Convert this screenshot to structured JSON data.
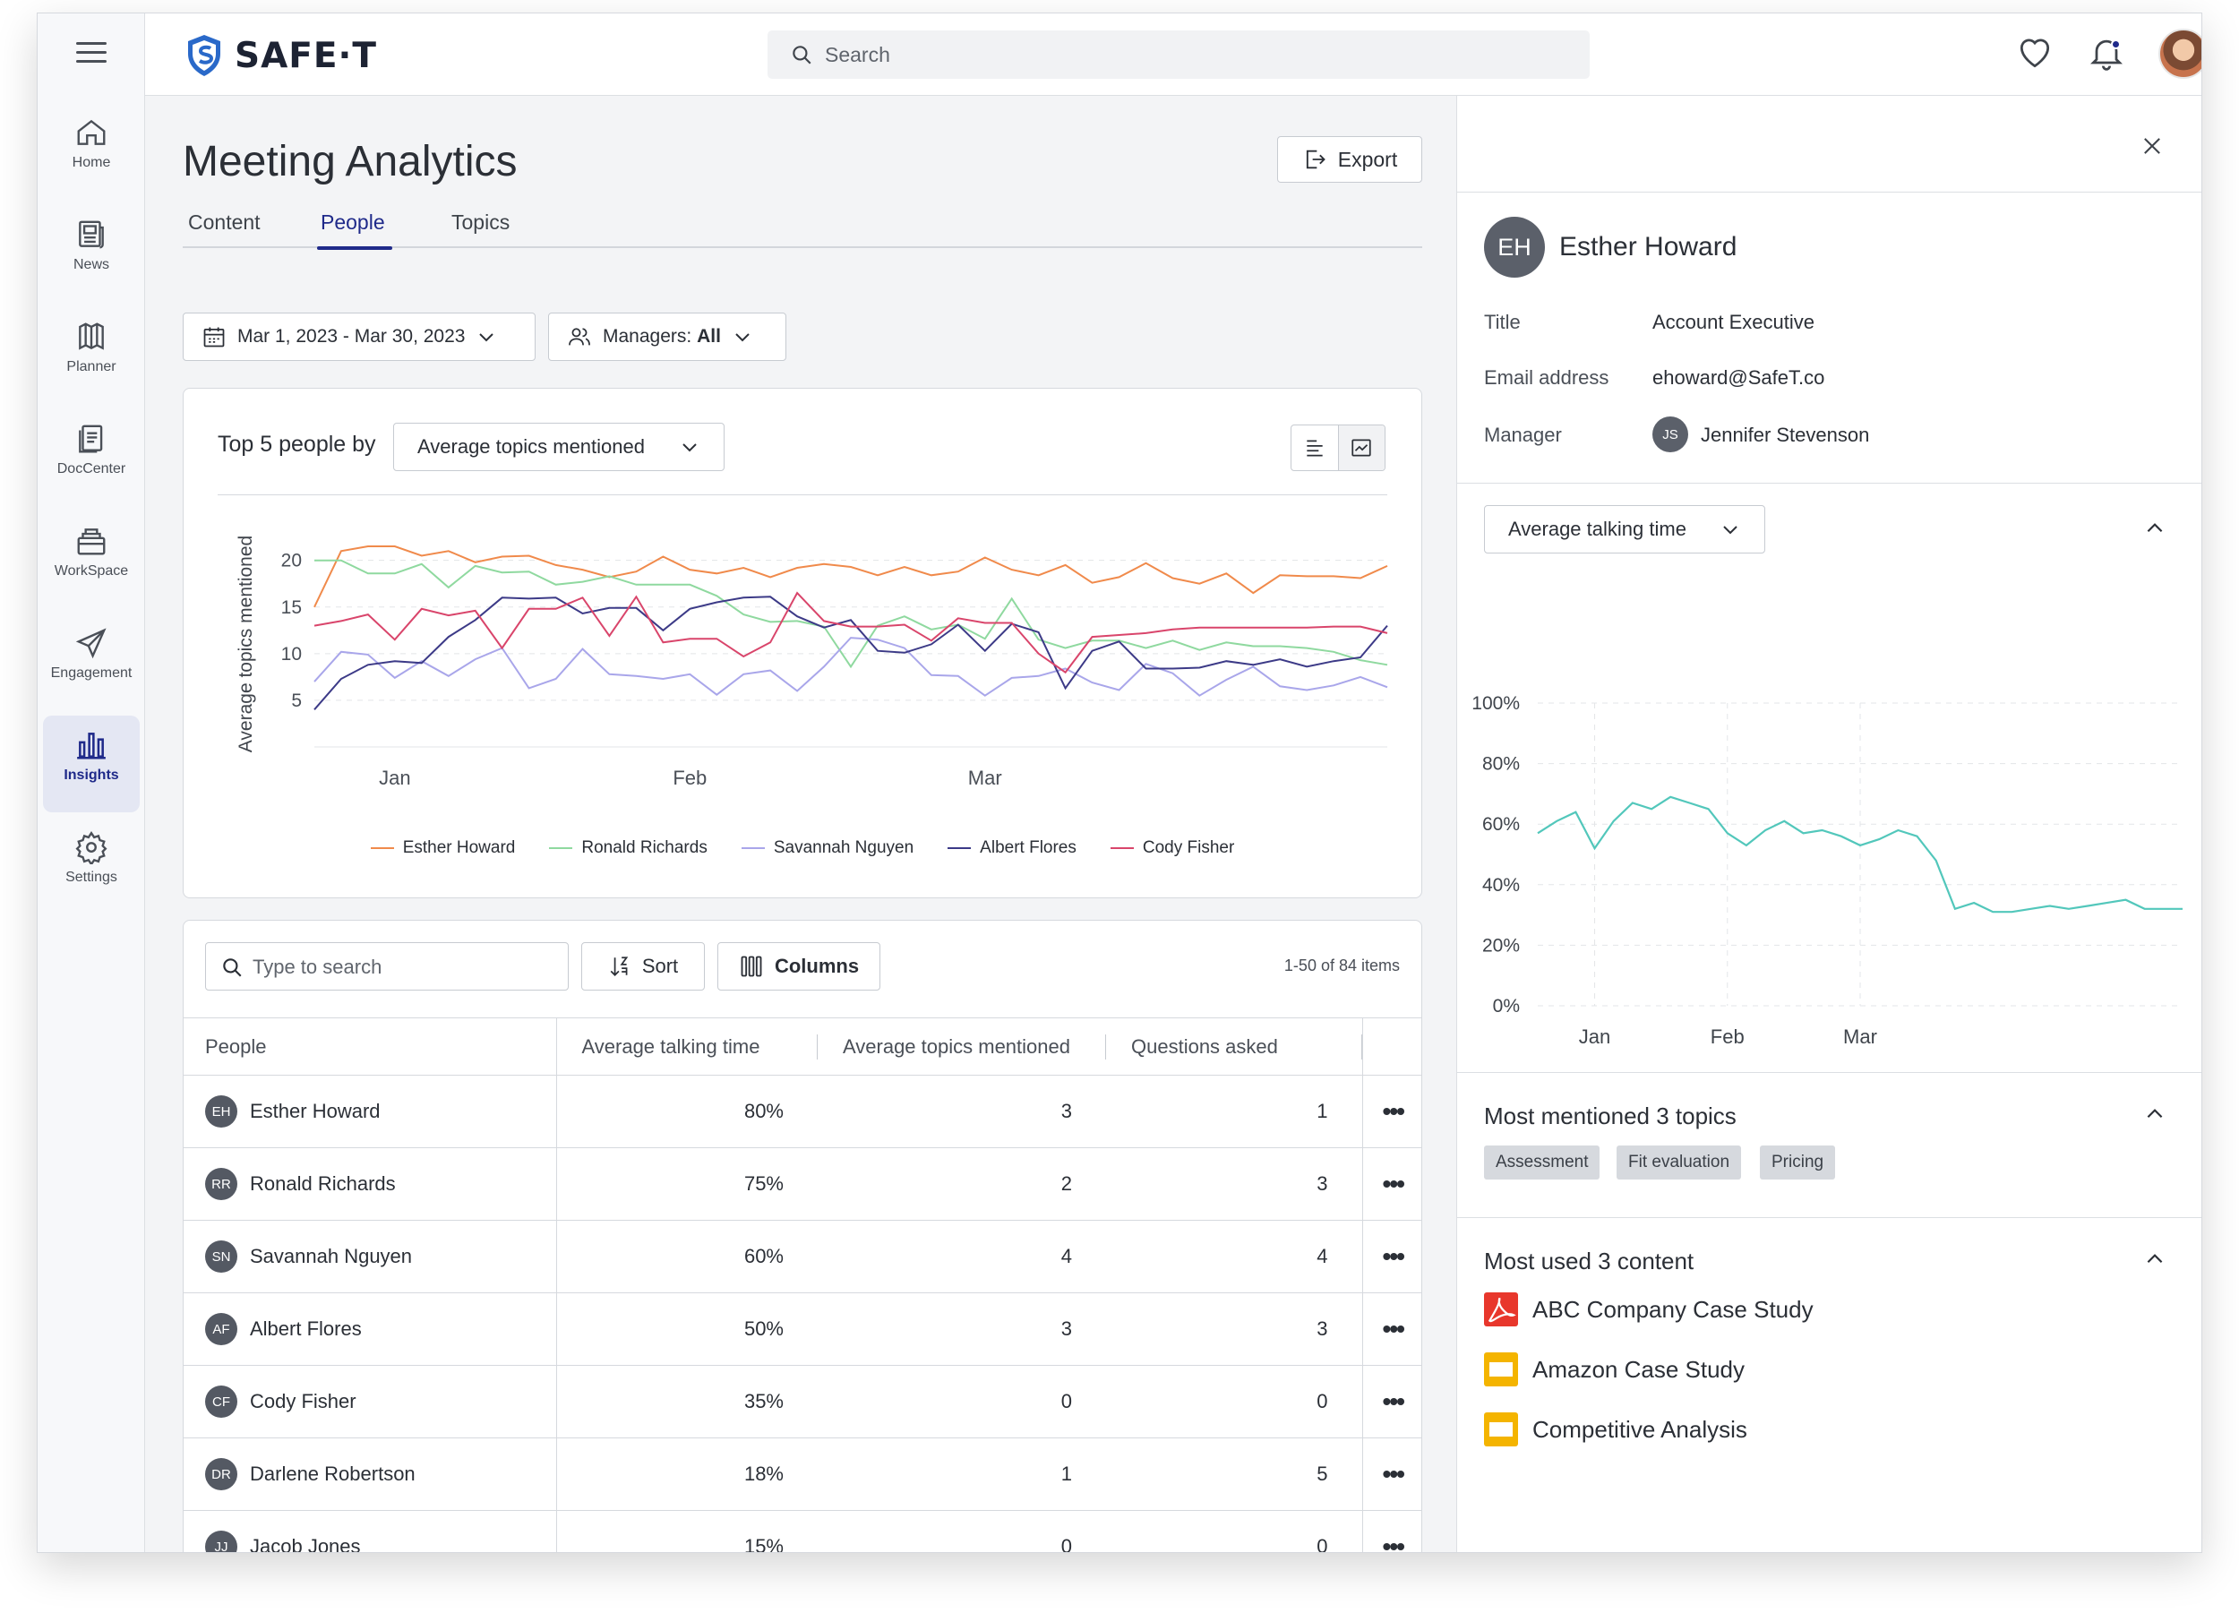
{
  "app": {
    "name": "SAFE·T"
  },
  "sidebar": {
    "items": [
      {
        "label": "Home",
        "icon": "home-icon"
      },
      {
        "label": "News",
        "icon": "news-icon"
      },
      {
        "label": "Planner",
        "icon": "planner-icon"
      },
      {
        "label": "DocCenter",
        "icon": "document-icon"
      },
      {
        "label": "WorkSpace",
        "icon": "workspace-icon"
      },
      {
        "label": "Engagement",
        "icon": "paper-plane-icon"
      },
      {
        "label": "Insights",
        "icon": "bar-chart-icon",
        "active": true
      },
      {
        "label": "Settings",
        "icon": "gear-icon"
      }
    ]
  },
  "topbar": {
    "search_placeholder": "Search"
  },
  "page": {
    "title": "Meeting Analytics",
    "export_label": "Export",
    "tabs": [
      {
        "label": "Content",
        "active": false
      },
      {
        "label": "People",
        "active": true
      },
      {
        "label": "Topics",
        "active": false
      }
    ],
    "date_range": "Mar 1, 2023 - Mar 30, 2023",
    "managers_prefix": "Managers: ",
    "managers_value": "All"
  },
  "chart_section": {
    "label": "Top 5 people by",
    "metric": "Average topics mentioned"
  },
  "chart_data": [
    {
      "type": "line",
      "ylabel": "Average topics mentioned",
      "xlabel": "",
      "ylim": [
        0,
        24
      ],
      "yticks": [
        5,
        10,
        15,
        20
      ],
      "x_tick_labels": [
        "Jan",
        "Feb",
        "Mar"
      ],
      "x_tick_index": [
        3,
        14,
        25
      ],
      "grid": true,
      "legend": "bottom",
      "colors": [
        "#f08a4b",
        "#8fd99f",
        "#a9a6ea",
        "#3c3a87",
        "#d9456b"
      ],
      "series": [
        {
          "name": "Esther Howard",
          "values": [
            15,
            21,
            21.5,
            21.5,
            20.5,
            21,
            19.8,
            20.4,
            20.5,
            19.5,
            19,
            18.2,
            18.8,
            20.4,
            19,
            18.6,
            19.2,
            18.2,
            19.2,
            19.6,
            19.3,
            18.4,
            19.3,
            18.4,
            18.8,
            20.3,
            19,
            18.4,
            19.5,
            17.6,
            18.2,
            19.7,
            18.1,
            17.5,
            18.6,
            16.5,
            18.4,
            18.3,
            18.3,
            18.1,
            19.4
          ]
        },
        {
          "name": "Ronald Richards",
          "values": [
            20,
            20,
            18.6,
            18.6,
            19.6,
            17.1,
            19.4,
            18.7,
            18.8,
            17.4,
            17.7,
            18.3,
            17.4,
            17.4,
            17.4,
            16.2,
            14.2,
            13.4,
            13.5,
            12.9,
            8.6,
            13,
            14,
            12.6,
            13.1,
            11.6,
            15.9,
            11.5,
            10.6,
            11.4,
            11.4,
            10.6,
            11.4,
            10.4,
            11.2,
            10.8,
            10.8,
            10.6,
            10.2,
            9.3,
            8.8
          ]
        },
        {
          "name": "Savannah Nguyen",
          "values": [
            7,
            10.2,
            9.9,
            7.4,
            9.2,
            7.6,
            9.4,
            10.6,
            6.3,
            7.3,
            10.5,
            7.8,
            7.6,
            7.3,
            7.8,
            5.6,
            7.8,
            8.2,
            6,
            8.6,
            11.7,
            11.5,
            10.6,
            7.7,
            7.6,
            5.5,
            7.4,
            7.6,
            8.4,
            6.9,
            6.1,
            8.9,
            7.9,
            5.5,
            7.2,
            8.6,
            6.5,
            6.1,
            6.6,
            7.5,
            6.4
          ]
        },
        {
          "name": "Albert Flores",
          "values": [
            4,
            7.3,
            8.8,
            9.2,
            9,
            11.8,
            13.6,
            16,
            15.9,
            16,
            14.3,
            14.9,
            14.9,
            12.5,
            14.8,
            15.5,
            16,
            16.1,
            14,
            12.8,
            13.6,
            10.3,
            10.1,
            11,
            13.1,
            10.3,
            13.2,
            12.3,
            6.3,
            10.3,
            11.3,
            8.4,
            8.4,
            8.5,
            9.2,
            8.8,
            9.4,
            8.6,
            9.2,
            9.6,
            13
          ]
        },
        {
          "name": "Cody Fisher",
          "values": [
            13,
            13.5,
            14.2,
            11.5,
            14.8,
            14.1,
            14.6,
            10.6,
            14.8,
            14.8,
            16,
            11.9,
            16.1,
            11.2,
            11.6,
            11.6,
            9.7,
            11.2,
            16.5,
            13.5,
            12.9,
            12.9,
            13.1,
            11.4,
            13.8,
            13.3,
            13.3,
            10,
            8,
            11.8,
            12,
            12.2,
            12.6,
            12.8,
            12.8,
            12.8,
            12.8,
            12.8,
            12.9,
            12.9,
            12.2
          ]
        }
      ]
    },
    {
      "type": "line",
      "xlabel": "",
      "ylabel": "",
      "ylim": [
        0,
        100
      ],
      "yticks": [
        "0%",
        "20%",
        "40%",
        "60%",
        "80%",
        "100%"
      ],
      "x_tick_labels": [
        "Jan",
        "Feb",
        "Mar"
      ],
      "x_tick_index": [
        3,
        10,
        17
      ],
      "grid": true,
      "colors": [
        "#52c7bb"
      ],
      "series": [
        {
          "values": [
            57,
            61,
            64,
            52,
            61,
            67,
            65,
            69,
            67,
            65,
            57,
            53,
            58,
            61,
            57,
            58,
            56,
            53,
            55,
            58,
            56,
            48,
            32,
            34,
            31,
            31,
            32,
            33,
            32,
            33,
            34,
            35,
            32,
            32,
            32
          ]
        }
      ]
    }
  ],
  "table": {
    "search_placeholder": "Type to search",
    "sort_label": "Sort",
    "columns_label": "Columns",
    "items_count": "1-50 of 84 items",
    "headers": [
      "People",
      "Average talking time",
      "Average topics mentioned",
      "Questions asked"
    ],
    "rows": [
      {
        "initials": "EH",
        "name": "Esther Howard",
        "talking": "80%",
        "topics": "3",
        "questions": "1"
      },
      {
        "initials": "RR",
        "name": "Ronald Richards",
        "talking": "75%",
        "topics": "2",
        "questions": "3"
      },
      {
        "initials": "SN",
        "name": "Savannah Nguyen",
        "talking": "60%",
        "topics": "4",
        "questions": "4"
      },
      {
        "initials": "AF",
        "name": "Albert Flores",
        "talking": "50%",
        "topics": "3",
        "questions": "3"
      },
      {
        "initials": "CF",
        "name": "Cody Fisher",
        "talking": "35%",
        "topics": "0",
        "questions": "0"
      },
      {
        "initials": "DR",
        "name": "Darlene Robertson",
        "talking": "18%",
        "topics": "1",
        "questions": "5"
      },
      {
        "initials": "JJ",
        "name": "Jacob Jones",
        "talking": "15%",
        "topics": "0",
        "questions": "0"
      }
    ]
  },
  "detail": {
    "initials": "EH",
    "name": "Esther Howard",
    "fields": [
      {
        "key": "Title",
        "value": "Account Executive"
      },
      {
        "key": "Email address",
        "value": "ehoward@SafeT.co"
      },
      {
        "key": "Manager",
        "value": "Jennifer Stevenson",
        "initials": "JS"
      }
    ],
    "metric": "Average talking time",
    "topics_title": "Most mentioned 3 topics",
    "topics": [
      "Assessment",
      "Fit evaluation",
      "Pricing"
    ],
    "content_title": "Most used 3 content",
    "content": [
      {
        "name": "ABC Company Case Study",
        "type": "pdf",
        "color": "#e8372c"
      },
      {
        "name": "Amazon Case Study",
        "type": "slides",
        "color": "#f4b400"
      },
      {
        "name": "Competitive Analysis",
        "type": "slides",
        "color": "#f4b400"
      }
    ]
  }
}
